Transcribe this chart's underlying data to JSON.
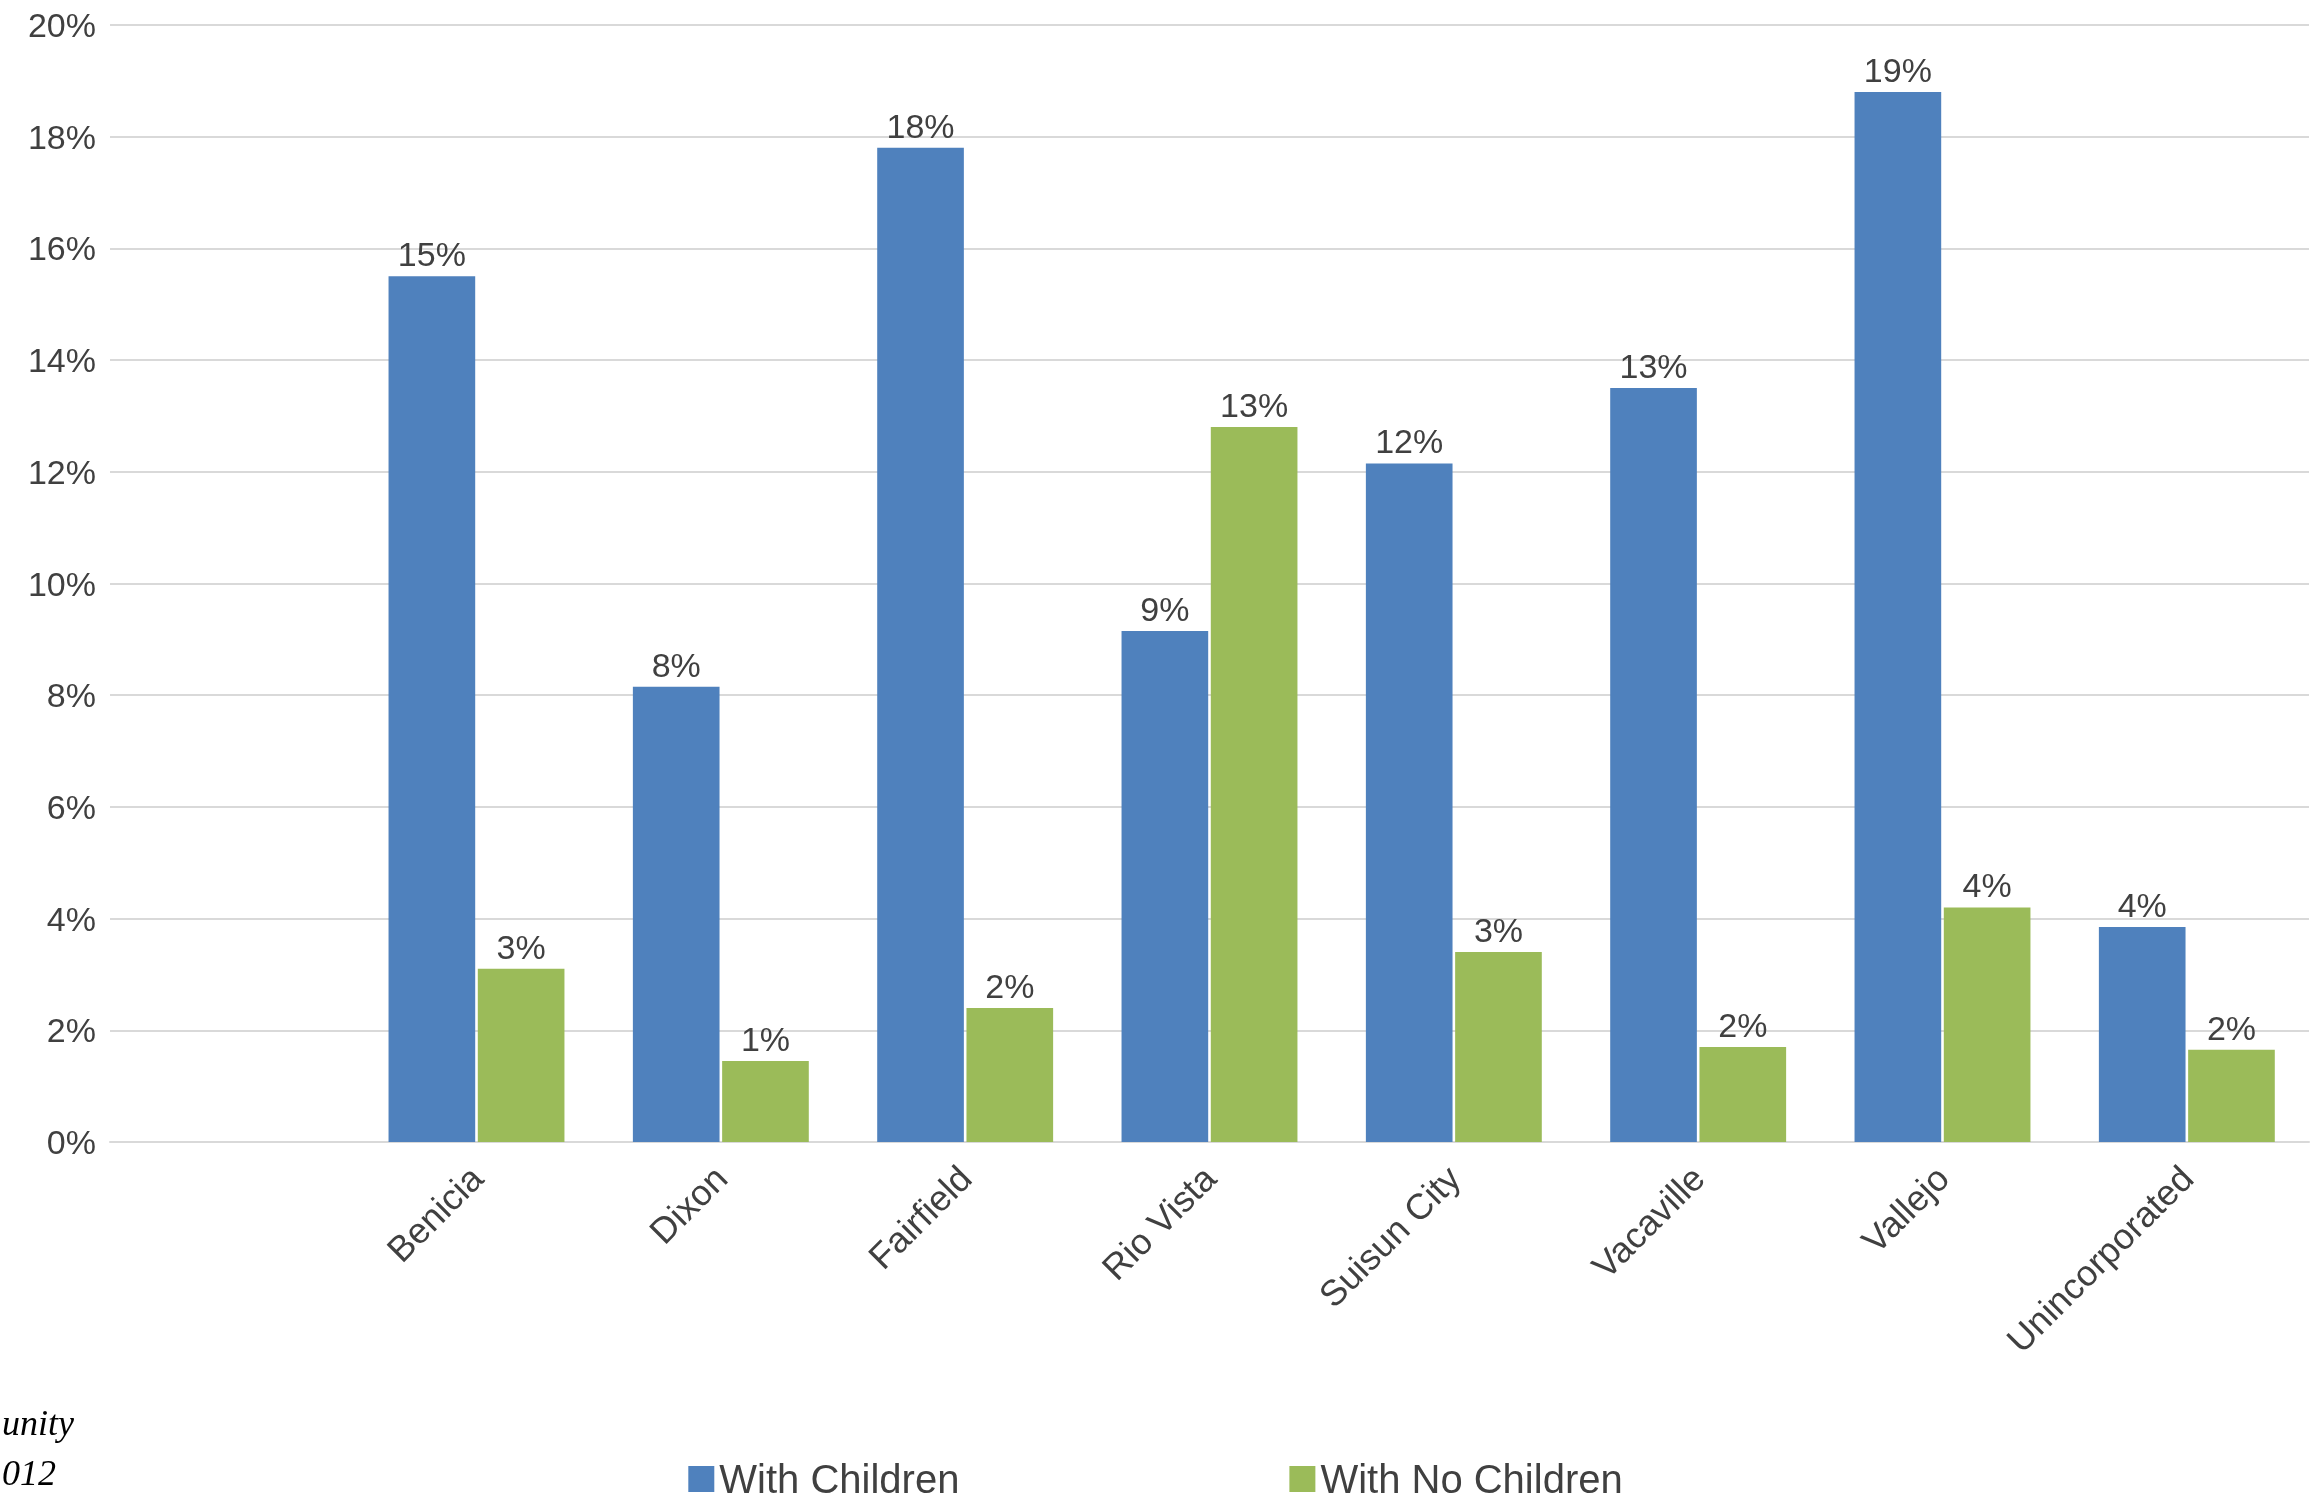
{
  "chart_data": {
    "type": "bar",
    "categories": [
      null,
      "Benicia",
      "Dixon",
      "Fairfield",
      "Rio Vista",
      "Suisun City",
      "Vacaville",
      "Vallejo",
      "Unincorporated"
    ],
    "series": [
      {
        "name": "With Children",
        "color": "#4f81bd",
        "values": [
          null,
          15.5,
          8.15,
          17.8,
          9.15,
          12.15,
          13.5,
          18.8,
          3.85
        ],
        "value_labels": [
          null,
          "15%",
          "8%",
          "18%",
          "9%",
          "12%",
          "13%",
          "19%",
          "4%"
        ]
      },
      {
        "name": "With No Children",
        "color": "#9bbb59",
        "values": [
          null,
          3.1,
          1.45,
          2.4,
          12.8,
          3.4,
          1.7,
          4.2,
          1.65
        ],
        "value_labels": [
          null,
          "3%",
          "1%",
          "2%",
          "13%",
          "3%",
          "2%",
          "4%",
          "2%"
        ]
      }
    ],
    "ylim": [
      0,
      20
    ],
    "yticks": [
      {
        "value": 0,
        "label": "0%"
      },
      {
        "value": 2,
        "label": "2%"
      },
      {
        "value": 4,
        "label": "4%"
      },
      {
        "value": 6,
        "label": "6%"
      },
      {
        "value": 8,
        "label": "8%"
      },
      {
        "value": 10,
        "label": "10%"
      },
      {
        "value": 12,
        "label": "12%"
      },
      {
        "value": 14,
        "label": "14%"
      },
      {
        "value": 16,
        "label": "16%"
      },
      {
        "value": 18,
        "label": "18%"
      },
      {
        "value": 20,
        "label": "20%"
      }
    ],
    "grid": "y",
    "legend": "bottom",
    "annotations": [
      "unity",
      "012"
    ]
  }
}
